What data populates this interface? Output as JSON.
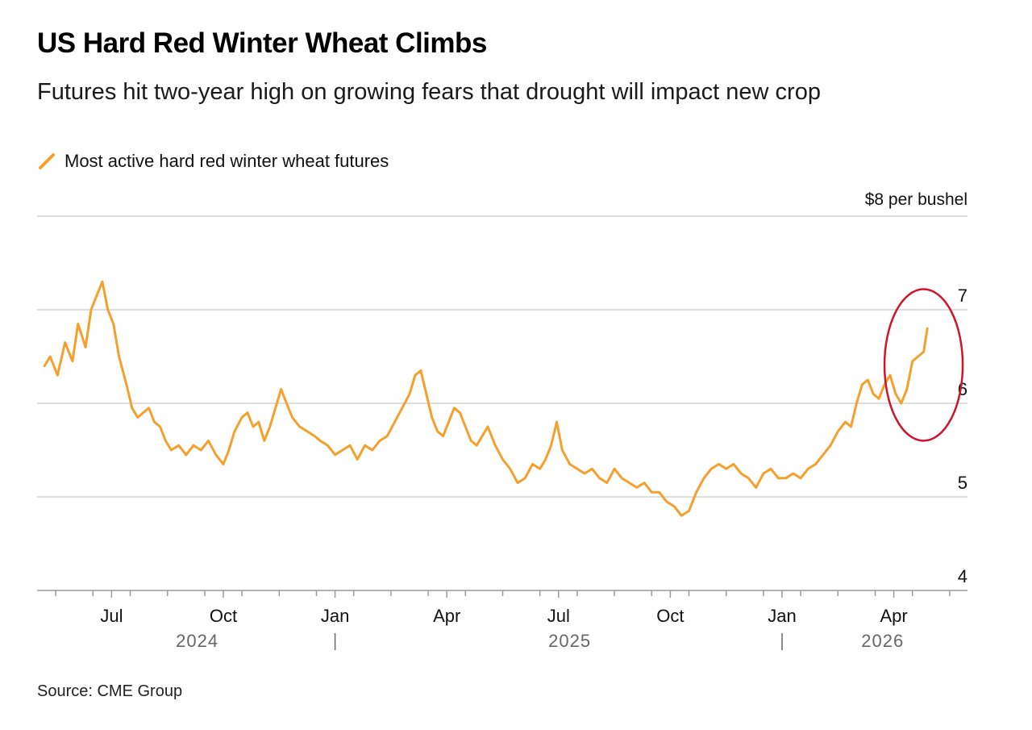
{
  "header": {
    "title": "US Hard Red Winter Wheat Climbs",
    "subtitle": "Futures hit two-year high on growing fears that drought will impact new crop"
  },
  "legend": {
    "label": "Most active hard red winter wheat futures",
    "color": "#f5a02c"
  },
  "footer": {
    "source": "Source: CME Group"
  },
  "chart_data": {
    "type": "line",
    "title": "US Hard Red Winter Wheat Climbs",
    "subtitle": "Futures hit two-year high on growing fears that drought will impact new crop",
    "ylabel": "$8 per bushel",
    "ylim": [
      4,
      8
    ],
    "yticks": [
      {
        "value": 8,
        "label": "$8 per bushel"
      },
      {
        "value": 7,
        "label": "7"
      },
      {
        "value": 6,
        "label": "6"
      },
      {
        "value": 5,
        "label": "5"
      },
      {
        "value": 4,
        "label": "4"
      }
    ],
    "xlim": [
      0,
      24.6
    ],
    "x_unit": "months since 2024-05-01",
    "xticks": [
      {
        "value": 2,
        "label": "Jul"
      },
      {
        "value": 5,
        "label": "Oct"
      },
      {
        "value": 8,
        "label": "Jan"
      },
      {
        "value": 11,
        "label": "Apr"
      },
      {
        "value": 14,
        "label": "Jul"
      },
      {
        "value": 17,
        "label": "Oct"
      },
      {
        "value": 20,
        "label": "Jan"
      },
      {
        "value": 23,
        "label": "Apr"
      }
    ],
    "year_labels": [
      {
        "value": 4.3,
        "label": "2024"
      },
      {
        "value": 14.3,
        "label": "2025"
      },
      {
        "value": 22.7,
        "label": "2026"
      }
    ],
    "year_separators": [
      8,
      20
    ],
    "series": [
      {
        "name": "Most active hard red winter wheat futures",
        "color": "#f5a02c",
        "points": [
          [
            0.2,
            6.4
          ],
          [
            0.35,
            6.5
          ],
          [
            0.55,
            6.3
          ],
          [
            0.75,
            6.65
          ],
          [
            0.95,
            6.45
          ],
          [
            1.1,
            6.85
          ],
          [
            1.3,
            6.6
          ],
          [
            1.45,
            7.0
          ],
          [
            1.6,
            7.15
          ],
          [
            1.75,
            7.3
          ],
          [
            1.9,
            7.0
          ],
          [
            2.05,
            6.85
          ],
          [
            2.2,
            6.5
          ],
          [
            2.4,
            6.2
          ],
          [
            2.55,
            5.95
          ],
          [
            2.7,
            5.85
          ],
          [
            2.85,
            5.9
          ],
          [
            3.0,
            5.95
          ],
          [
            3.15,
            5.8
          ],
          [
            3.3,
            5.75
          ],
          [
            3.45,
            5.6
          ],
          [
            3.6,
            5.5
          ],
          [
            3.8,
            5.55
          ],
          [
            4.0,
            5.45
          ],
          [
            4.2,
            5.55
          ],
          [
            4.4,
            5.5
          ],
          [
            4.6,
            5.6
          ],
          [
            4.8,
            5.45
          ],
          [
            5.0,
            5.35
          ],
          [
            5.15,
            5.5
          ],
          [
            5.3,
            5.7
          ],
          [
            5.5,
            5.85
          ],
          [
            5.65,
            5.9
          ],
          [
            5.8,
            5.75
          ],
          [
            5.95,
            5.8
          ],
          [
            6.1,
            5.6
          ],
          [
            6.25,
            5.75
          ],
          [
            6.4,
            5.95
          ],
          [
            6.55,
            6.15
          ],
          [
            6.7,
            6.0
          ],
          [
            6.85,
            5.85
          ],
          [
            7.05,
            5.75
          ],
          [
            7.25,
            5.7
          ],
          [
            7.45,
            5.65
          ],
          [
            7.6,
            5.6
          ],
          [
            7.8,
            5.55
          ],
          [
            8.0,
            5.45
          ],
          [
            8.2,
            5.5
          ],
          [
            8.4,
            5.55
          ],
          [
            8.6,
            5.4
          ],
          [
            8.8,
            5.55
          ],
          [
            9.0,
            5.5
          ],
          [
            9.2,
            5.6
          ],
          [
            9.4,
            5.65
          ],
          [
            9.6,
            5.8
          ],
          [
            9.8,
            5.95
          ],
          [
            10.0,
            6.1
          ],
          [
            10.15,
            6.3
          ],
          [
            10.3,
            6.35
          ],
          [
            10.45,
            6.1
          ],
          [
            10.6,
            5.85
          ],
          [
            10.75,
            5.7
          ],
          [
            10.9,
            5.65
          ],
          [
            11.05,
            5.8
          ],
          [
            11.2,
            5.95
          ],
          [
            11.35,
            5.9
          ],
          [
            11.5,
            5.75
          ],
          [
            11.65,
            5.6
          ],
          [
            11.8,
            5.55
          ],
          [
            11.95,
            5.65
          ],
          [
            12.1,
            5.75
          ],
          [
            12.3,
            5.55
          ],
          [
            12.5,
            5.4
          ],
          [
            12.7,
            5.3
          ],
          [
            12.9,
            5.15
          ],
          [
            13.1,
            5.2
          ],
          [
            13.3,
            5.35
          ],
          [
            13.5,
            5.3
          ],
          [
            13.65,
            5.4
          ],
          [
            13.8,
            5.55
          ],
          [
            13.95,
            5.8
          ],
          [
            14.1,
            5.5
          ],
          [
            14.3,
            5.35
          ],
          [
            14.5,
            5.3
          ],
          [
            14.7,
            5.25
          ],
          [
            14.9,
            5.3
          ],
          [
            15.1,
            5.2
          ],
          [
            15.3,
            5.15
          ],
          [
            15.5,
            5.3
          ],
          [
            15.7,
            5.2
          ],
          [
            15.9,
            5.15
          ],
          [
            16.1,
            5.1
          ],
          [
            16.3,
            5.15
          ],
          [
            16.5,
            5.05
          ],
          [
            16.7,
            5.05
          ],
          [
            16.9,
            4.95
          ],
          [
            17.1,
            4.9
          ],
          [
            17.3,
            4.8
          ],
          [
            17.5,
            4.85
          ],
          [
            17.7,
            5.05
          ],
          [
            17.9,
            5.2
          ],
          [
            18.1,
            5.3
          ],
          [
            18.3,
            5.35
          ],
          [
            18.5,
            5.3
          ],
          [
            18.7,
            5.35
          ],
          [
            18.9,
            5.25
          ],
          [
            19.1,
            5.2
          ],
          [
            19.3,
            5.1
          ],
          [
            19.5,
            5.25
          ],
          [
            19.7,
            5.3
          ],
          [
            19.9,
            5.2
          ],
          [
            20.1,
            5.2
          ],
          [
            20.3,
            5.25
          ],
          [
            20.5,
            5.2
          ],
          [
            20.7,
            5.3
          ],
          [
            20.9,
            5.35
          ],
          [
            21.1,
            5.45
          ],
          [
            21.3,
            5.55
          ],
          [
            21.5,
            5.7
          ],
          [
            21.7,
            5.8
          ],
          [
            21.85,
            5.75
          ],
          [
            22.0,
            6.0
          ],
          [
            22.15,
            6.2
          ],
          [
            22.3,
            6.25
          ],
          [
            22.45,
            6.1
          ],
          [
            22.6,
            6.05
          ],
          [
            22.75,
            6.2
          ],
          [
            22.9,
            6.3
          ],
          [
            23.05,
            6.1
          ],
          [
            23.2,
            6.0
          ],
          [
            23.35,
            6.15
          ],
          [
            23.5,
            6.45
          ],
          [
            23.65,
            6.5
          ],
          [
            23.8,
            6.55
          ],
          [
            23.9,
            6.8
          ]
        ]
      }
    ],
    "annotation": {
      "type": "ellipse",
      "color": "#d0142c",
      "x_range": [
        22.75,
        24.85
      ],
      "y_range": [
        5.6,
        7.22
      ]
    }
  }
}
